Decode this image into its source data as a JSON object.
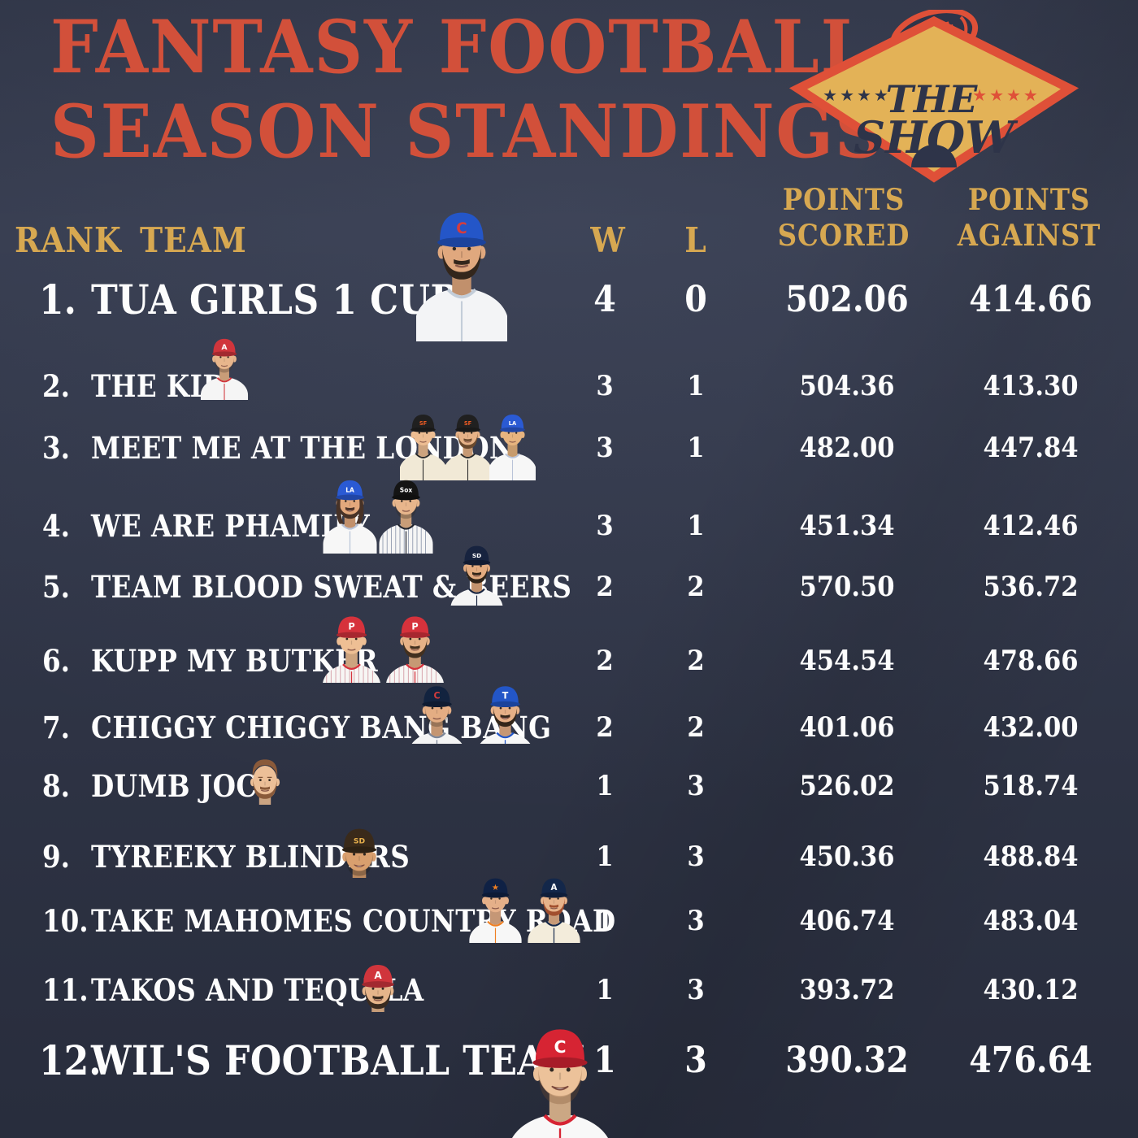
{
  "title": {
    "line1": "FANTASY FOOTBALL",
    "line2": "SEASON STANDINGS"
  },
  "logo": {
    "word1": "THE",
    "word2": "SHOW",
    "stars_left": "★★★★",
    "stars_right": "★★★★"
  },
  "columns": {
    "rank": "RANK",
    "team": "TEAM",
    "wins": "W",
    "losses": "L",
    "points_scored_line1": "POINTS",
    "points_scored_line2": "SCORED",
    "points_against_line1": "POINTS",
    "points_against_line2": "AGAINST"
  },
  "colors": {
    "background": "#363c4f",
    "title_orange": "#d2503a",
    "header_gold": "#d7a851",
    "row_text": "#fdfdfd",
    "logo_gold": "#e3b257",
    "logo_red": "#df5038",
    "logo_navy": "#2e3449"
  },
  "rows": [
    {
      "rank": "1.",
      "team": "TUA GIRLS 1 CUP",
      "wins": "4",
      "losses": "0",
      "points_scored": "502.06",
      "points_against": "414.66",
      "players": [
        {
          "name": "cubs-player",
          "cap": "#2456c8",
          "cap_logo": "C",
          "cap_logo_color": "#d63c3c",
          "jersey": "#f3f4f6",
          "trim": "#c3cdd9",
          "skin": "#e0a87e",
          "facial_hair": "full",
          "hair": "#33261c"
        }
      ]
    },
    {
      "rank": "2.",
      "team": "THE KID",
      "wins": "3",
      "losses": "1",
      "points_scored": "504.36",
      "points_against": "413.30",
      "players": [
        {
          "name": "angels-player",
          "cap": "#d0353c",
          "cap_logo": "A",
          "cap_logo_color": "#ffffff",
          "jersey": "#f5f5f5",
          "trim": "#d0353c",
          "skin": "#e8b68c",
          "facial_hair": "stubble",
          "hair": "#4a362a"
        }
      ]
    },
    {
      "rank": "3.",
      "team": "MEET ME AT THE LONDON",
      "wins": "3",
      "losses": "1",
      "points_scored": "482.00",
      "points_against": "447.84",
      "players": [
        {
          "name": "giants-player",
          "cap": "#202020",
          "cap_logo": "SF",
          "cap_logo_color": "#ef5b23",
          "jersey": "#f1e9d6",
          "trim": "#2a2a2a",
          "skin": "#edbd92",
          "facial_hair": "none",
          "hair": "#5a4632"
        },
        {
          "name": "giants-player",
          "cap": "#202020",
          "cap_logo": "SF",
          "cap_logo_color": "#ef5b23",
          "jersey": "#f1e9d6",
          "trim": "#2a2a2a",
          "skin": "#e6b287",
          "facial_hair": "full",
          "hair": "#6b4a2e"
        },
        {
          "name": "dodgers-player",
          "cap": "#2a5ad4",
          "cap_logo": "LA",
          "cap_logo_color": "#ffffff",
          "jersey": "#f7f7f7",
          "trim": "#b9c3d8",
          "skin": "#e7b47f",
          "facial_hair": "none",
          "hair": "#1d1712"
        }
      ]
    },
    {
      "rank": "4.",
      "team": "WE ARE PHAMILY",
      "wins": "3",
      "losses": "1",
      "points_scored": "451.34",
      "points_against": "412.46",
      "players": [
        {
          "name": "dodgers-player",
          "cap": "#2a5ad4",
          "cap_logo": "LA",
          "cap_logo_color": "#ffffff",
          "jersey": "#f7f7f7",
          "trim": "#b9c3d8",
          "skin": "#e2a87c",
          "facial_hair": "full",
          "hair": "#473227",
          "long_hair": true,
          "smile": true
        },
        {
          "name": "white-sox-player",
          "cap": "#141414",
          "cap_logo": "Sox",
          "cap_logo_color": "#ffffff",
          "jersey": "#f5f5f5",
          "jersey_stripe": "#9aa3b5",
          "trim": "#20242e",
          "skin": "#e8b68c",
          "facial_hair": "stubble",
          "hair": "#2e241c"
        }
      ]
    },
    {
      "rank": "5.",
      "team": "TEAM BLOOD SWEAT & BEERS",
      "wins": "2",
      "losses": "2",
      "points_scored": "570.50",
      "points_against": "536.72",
      "players": [
        {
          "name": "padres-player",
          "cap": "#17233f",
          "cap_logo": "SD",
          "cap_logo_color": "#ffffff",
          "jersey": "#f5f5f5",
          "trim": "#17233f",
          "skin": "#e3ab80",
          "facial_hair": "full",
          "hair": "#2f2318"
        }
      ]
    },
    {
      "rank": "6.",
      "team": "KUPP MY BUTKER",
      "wins": "2",
      "losses": "2",
      "points_scored": "454.54",
      "points_against": "478.66",
      "players": [
        {
          "name": "phillies-player",
          "cap": "#d6323c",
          "cap_logo": "P",
          "cap_logo_color": "#ffffff",
          "jersey": "#f7f6f4",
          "jersey_stripe": "#d9aab1",
          "trim": "#d6323c",
          "skin": "#eebf94",
          "facial_hair": "none",
          "hair": "#3c2d20"
        },
        {
          "name": "phillies-player",
          "cap": "#d6323c",
          "cap_logo": "P",
          "cap_logo_color": "#ffffff",
          "jersey": "#f7f6f4",
          "jersey_stripe": "#d9aab1",
          "trim": "#d6323c",
          "skin": "#e6b287",
          "facial_hair": "full",
          "hair": "#42301f"
        }
      ]
    },
    {
      "rank": "7.",
      "team": "CHIGGY CHIGGY BANG BANG",
      "wins": "2",
      "losses": "2",
      "points_scored": "401.06",
      "points_against": "432.00",
      "players": [
        {
          "name": "guardians-player",
          "cap": "#12233f",
          "cap_logo": "C",
          "cap_logo_color": "#d63c3c",
          "jersey": "#f4f4f4",
          "trim": "#7d8698",
          "skin": "#e4ad83",
          "facial_hair": "stubble",
          "hair": "#33281e"
        },
        {
          "name": "rangers-player",
          "cap": "#2356c7",
          "cap_logo": "T",
          "cap_logo_color": "#ffffff",
          "jersey": "#f7f7f7",
          "trim": "#2356c7",
          "skin": "#e6b087",
          "facial_hair": "full",
          "hair": "#33261a",
          "smile": true
        }
      ]
    },
    {
      "rank": "8.",
      "team": "DUMB JOCS",
      "wins": "1",
      "losses": "3",
      "points_scored": "526.02",
      "points_against": "518.74",
      "players": [
        {
          "name": "suit-guy",
          "attire": "suit",
          "suit": "#d8d8da",
          "skin": "#ecbf97",
          "facial_hair": "full",
          "hair": "#8a5a3a"
        }
      ]
    },
    {
      "rank": "9.",
      "team": "TYREEKY BLINDERS",
      "wins": "1",
      "losses": "3",
      "points_scored": "450.36",
      "points_against": "488.84",
      "players": [
        {
          "name": "padres-brown-player",
          "cap": "#3a2a1a",
          "cap_logo": "SD",
          "cap_logo_color": "#e8b04c",
          "jersey": "#f6f3ee",
          "jersey_stripe": "#cbb7a0",
          "trim": "#3a2a1a",
          "skin": "#d99f6e",
          "facial_hair": "stubble",
          "hair": "#1f1610",
          "smile": true
        }
      ]
    },
    {
      "rank": "10.",
      "team": "TAKE MAHOMES COUNTRY ROAD",
      "wins": "1",
      "losses": "3",
      "points_scored": "406.74",
      "points_against": "483.04",
      "players": [
        {
          "name": "astros-player",
          "cap": "#0f2145",
          "cap_logo": "★",
          "cap_logo_color": "#ef7f22",
          "jersey": "#f7f7f7",
          "trim": "#ef7f22",
          "skin": "#e5b089",
          "facial_hair": "none",
          "hair": "#6b4f35"
        },
        {
          "name": "braves-player",
          "cap": "#13274a",
          "cap_logo": "A",
          "cap_logo_color": "#ffffff",
          "jersey": "#f3ecdb",
          "trim": "#13274a",
          "skin": "#e7b38a",
          "facial_hair": "full",
          "hair": "#a14f2e"
        }
      ]
    },
    {
      "rank": "11.",
      "team": "TAKOS AND TEQUILA",
      "wins": "1",
      "losses": "3",
      "points_scored": "393.72",
      "points_against": "430.12",
      "players": [
        {
          "name": "angels-player",
          "cap": "#d0353c",
          "cap_logo": "A",
          "cap_logo_color": "#ffffff",
          "jersey": "#f6f6f6",
          "trim": "#d0353c",
          "skin": "#e6b58b",
          "facial_hair": "full",
          "hair": "#3a2b20"
        }
      ]
    },
    {
      "rank": "12.",
      "team": "WIL'S FOOTBALL TEAM",
      "wins": "1",
      "losses": "3",
      "points_scored": "390.32",
      "points_against": "476.64",
      "players": [
        {
          "name": "reds-player",
          "cap": "#d62433",
          "cap_logo": "C",
          "cap_logo_color": "#ffffff",
          "jersey": "#f8f8f8",
          "trim": "#d62433",
          "skin": "#ecc29a",
          "facial_hair": "stubble",
          "hair": "#7a4f2e",
          "smile": true
        }
      ]
    }
  ]
}
